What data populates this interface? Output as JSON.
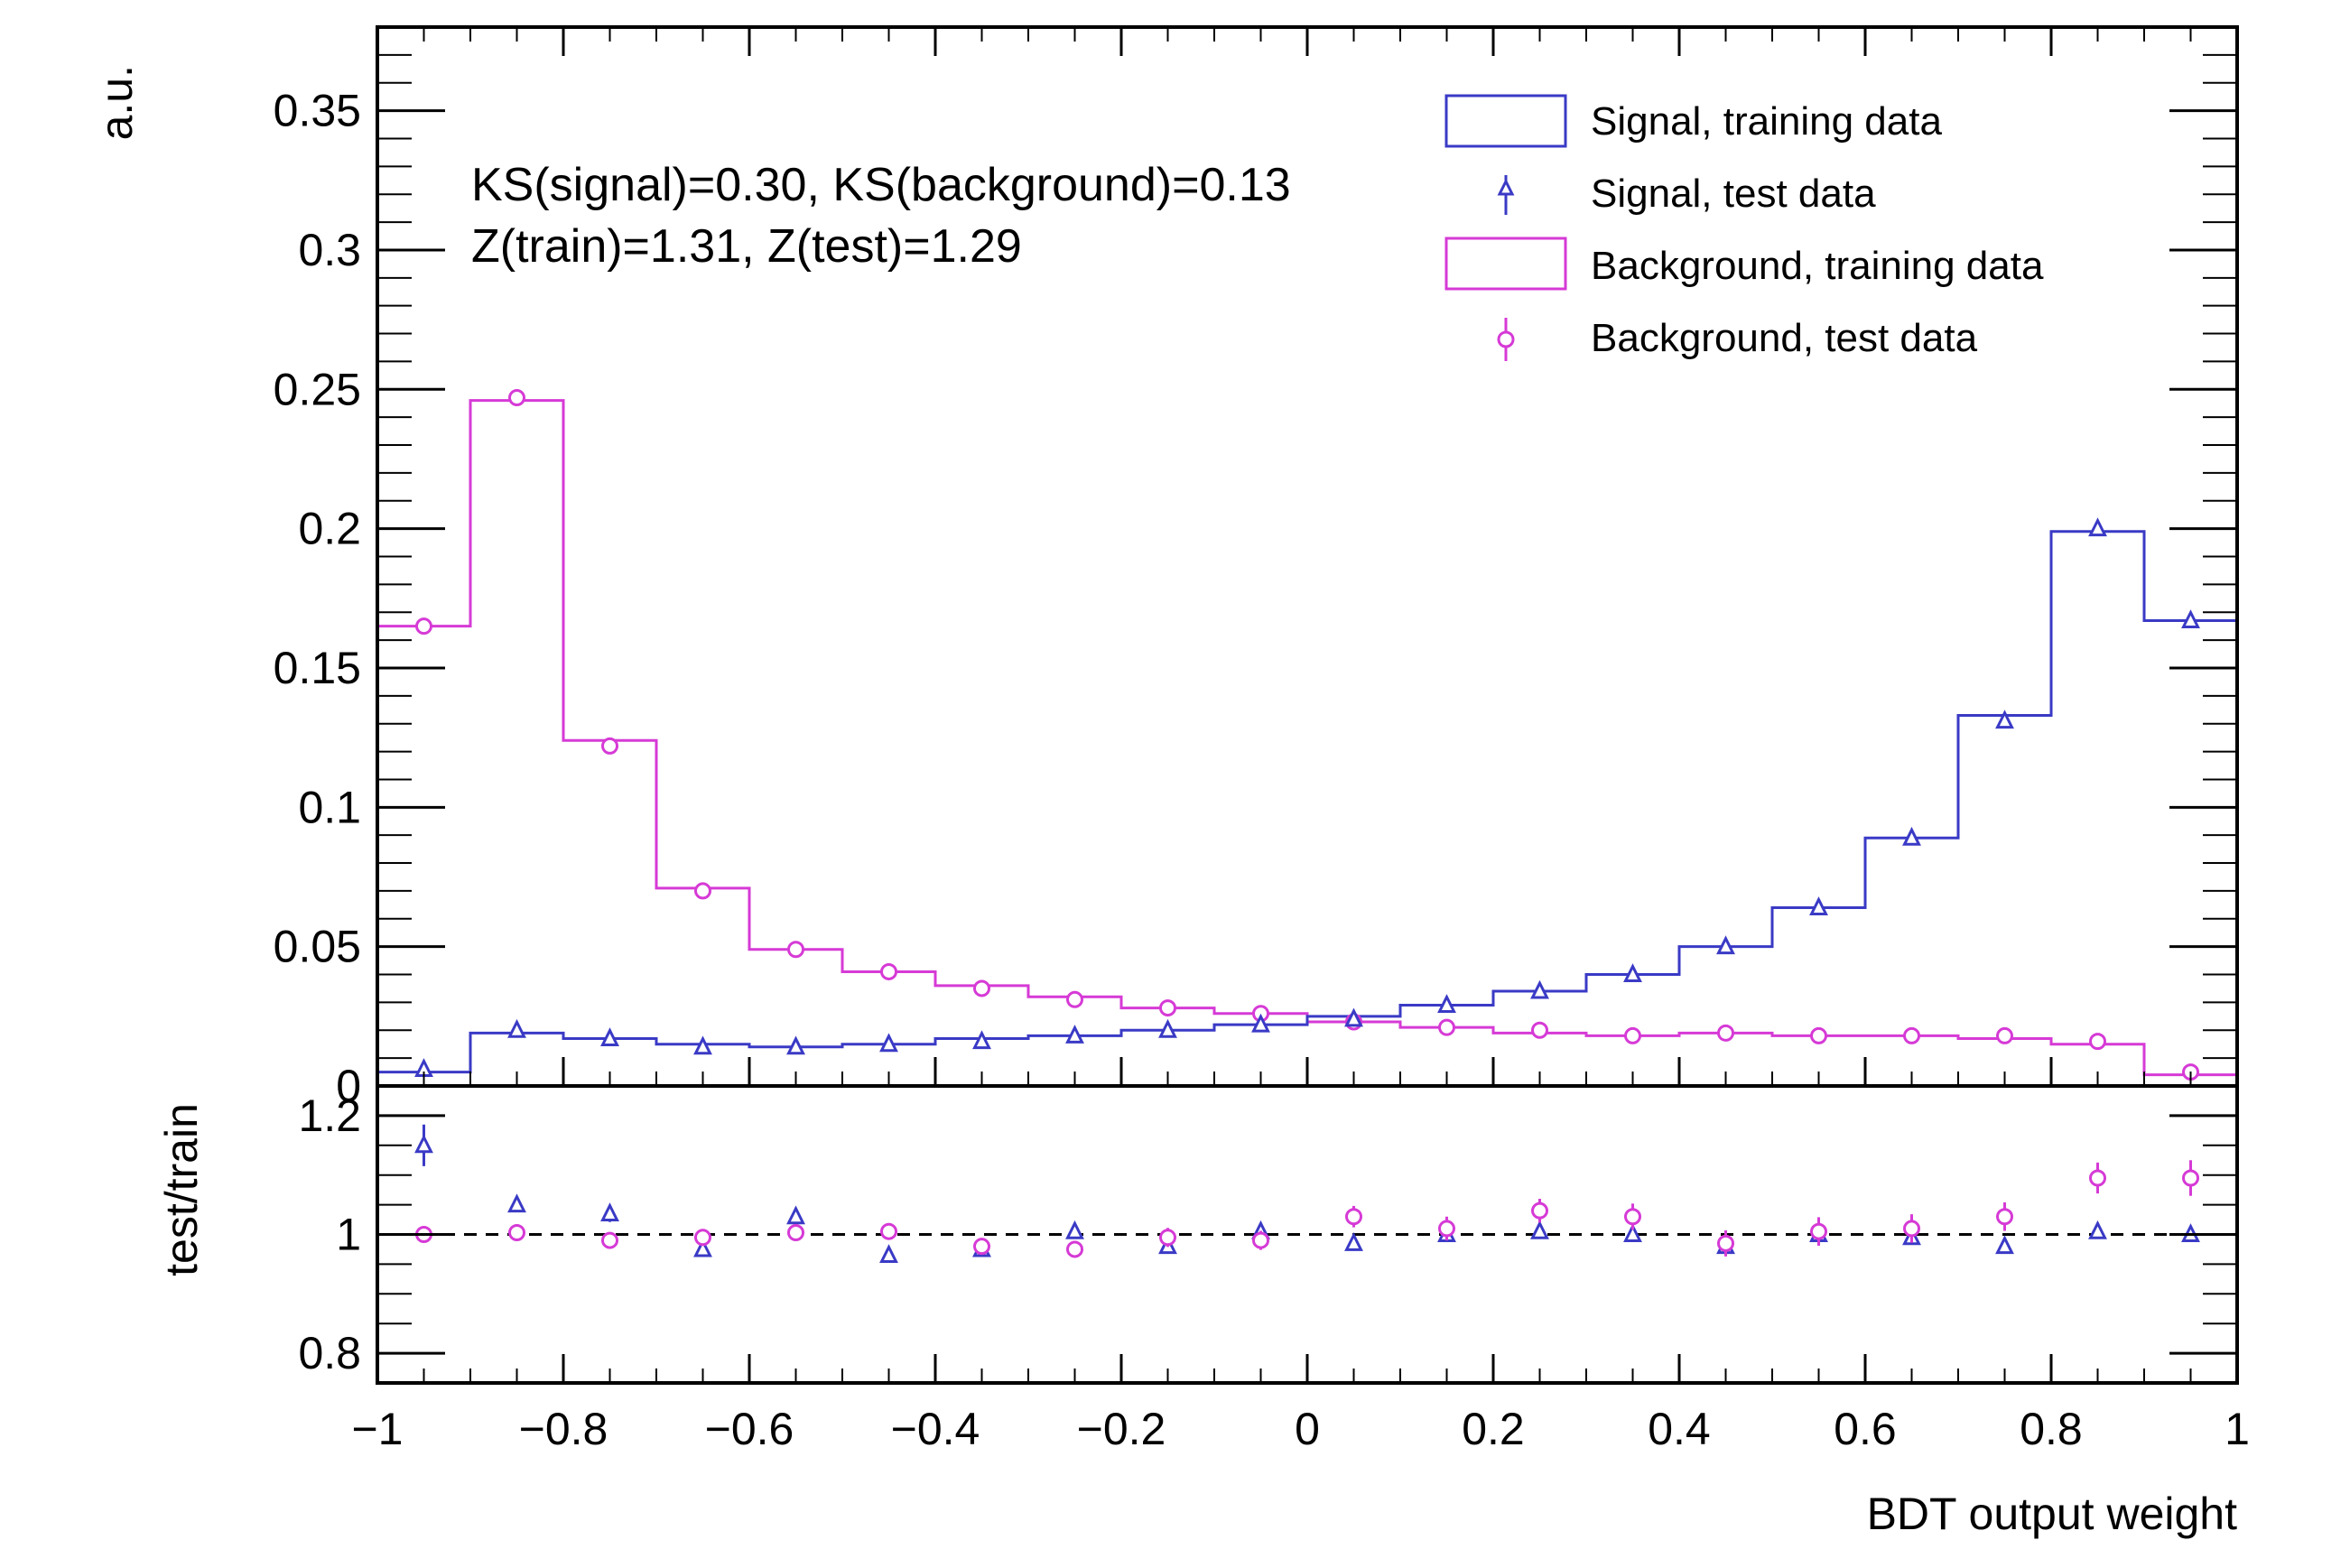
{
  "chart_data": [
    {
      "type": "histogram",
      "panel": "main",
      "ylabel": "a.u.",
      "xlim": [
        -1,
        1
      ],
      "ylim": [
        0,
        0.38
      ],
      "y_ticks": [
        "0",
        "0.05",
        "0.1",
        "0.15",
        "0.2",
        "0.25",
        "0.3",
        "0.35"
      ],
      "bin_edges": [
        -1,
        -0.9,
        -0.8,
        -0.7,
        -0.6,
        -0.5,
        -0.4,
        -0.3,
        -0.2,
        -0.1,
        0,
        0.1,
        0.2,
        0.3,
        0.4,
        0.5,
        0.6,
        0.7,
        0.8,
        0.9,
        1
      ],
      "annotations": [
        "KS(signal)=0.30, KS(background)=0.13",
        "Z(train)=1.31, Z(test)=1.29"
      ],
      "legend_position": "top-right",
      "series": [
        {
          "name": "Signal, training data",
          "style": "step",
          "color": "#3a3ac6",
          "values": [
            0.005,
            0.019,
            0.017,
            0.015,
            0.014,
            0.015,
            0.017,
            0.018,
            0.02,
            0.022,
            0.025,
            0.029,
            0.034,
            0.04,
            0.05,
            0.064,
            0.089,
            0.133,
            0.199,
            0.167
          ]
        },
        {
          "name": "Signal, test data",
          "style": "triangle-marker",
          "color": "#3a3ac6",
          "values": [
            0.006,
            0.02,
            0.017,
            0.014,
            0.014,
            0.015,
            0.016,
            0.018,
            0.02,
            0.022,
            0.024,
            0.029,
            0.034,
            0.04,
            0.05,
            0.064,
            0.089,
            0.131,
            0.2,
            0.167
          ]
        },
        {
          "name": "Background, training data",
          "style": "step",
          "color": "#d63ad6",
          "values": [
            0.165,
            0.246,
            0.124,
            0.071,
            0.049,
            0.041,
            0.036,
            0.032,
            0.028,
            0.026,
            0.023,
            0.021,
            0.019,
            0.018,
            0.019,
            0.018,
            0.018,
            0.017,
            0.015,
            0.004
          ]
        },
        {
          "name": "Background, test data",
          "style": "circle-marker",
          "color": "#d63ad6",
          "values": [
            0.165,
            0.247,
            0.122,
            0.07,
            0.049,
            0.041,
            0.035,
            0.031,
            0.028,
            0.026,
            0.023,
            0.021,
            0.02,
            0.018,
            0.019,
            0.018,
            0.018,
            0.018,
            0.016,
            0.005
          ]
        }
      ]
    },
    {
      "type": "scatter",
      "panel": "ratio",
      "xlabel": "BDT output weight",
      "ylabel": "test/train",
      "xlim": [
        -1,
        1
      ],
      "ylim": [
        0.75,
        1.25
      ],
      "x_ticks": [
        "−1",
        "−0.8",
        "−0.6",
        "−0.4",
        "−0.2",
        "0",
        "0.2",
        "0.4",
        "0.6",
        "0.8",
        "1"
      ],
      "y_ticks": [
        "0.8",
        "1",
        "1.2"
      ],
      "reference_line": 1,
      "x": [
        -0.95,
        -0.85,
        -0.75,
        -0.65,
        -0.55,
        -0.45,
        -0.35,
        -0.25,
        -0.15,
        -0.05,
        0.05,
        0.15,
        0.25,
        0.35,
        0.45,
        0.55,
        0.65,
        0.75,
        0.85,
        0.95
      ],
      "series": [
        {
          "name": "Signal",
          "marker": "triangle",
          "color": "#3a3ac6",
          "values": [
            1.15,
            1.05,
            1.035,
            0.975,
            1.03,
            0.965,
            0.975,
            1.005,
            0.98,
            1.005,
            0.985,
            1.0,
            1.005,
            1.0,
            0.98,
            1.0,
            0.995,
            0.98,
            1.005,
            1.0
          ],
          "errors": [
            0.035,
            0.012,
            0.014,
            0.01,
            0.015,
            0.012,
            0.01,
            0.01,
            0.01,
            0.008,
            0.008,
            0.008,
            0.006,
            0.006,
            0.006,
            0.005,
            0.005,
            0.004,
            0.003,
            0.004
          ]
        },
        {
          "name": "Background",
          "marker": "circle",
          "color": "#d63ad6",
          "values": [
            1.0,
            1.003,
            0.99,
            0.995,
            1.003,
            1.005,
            0.98,
            0.975,
            0.995,
            0.99,
            1.03,
            1.01,
            1.04,
            1.03,
            0.985,
            1.005,
            1.01,
            1.03,
            1.095,
            1.095
          ],
          "errors": [
            0.004,
            0.004,
            0.006,
            0.008,
            0.01,
            0.012,
            0.012,
            0.014,
            0.016,
            0.016,
            0.018,
            0.02,
            0.02,
            0.022,
            0.022,
            0.024,
            0.024,
            0.024,
            0.026,
            0.03
          ]
        }
      ]
    }
  ]
}
